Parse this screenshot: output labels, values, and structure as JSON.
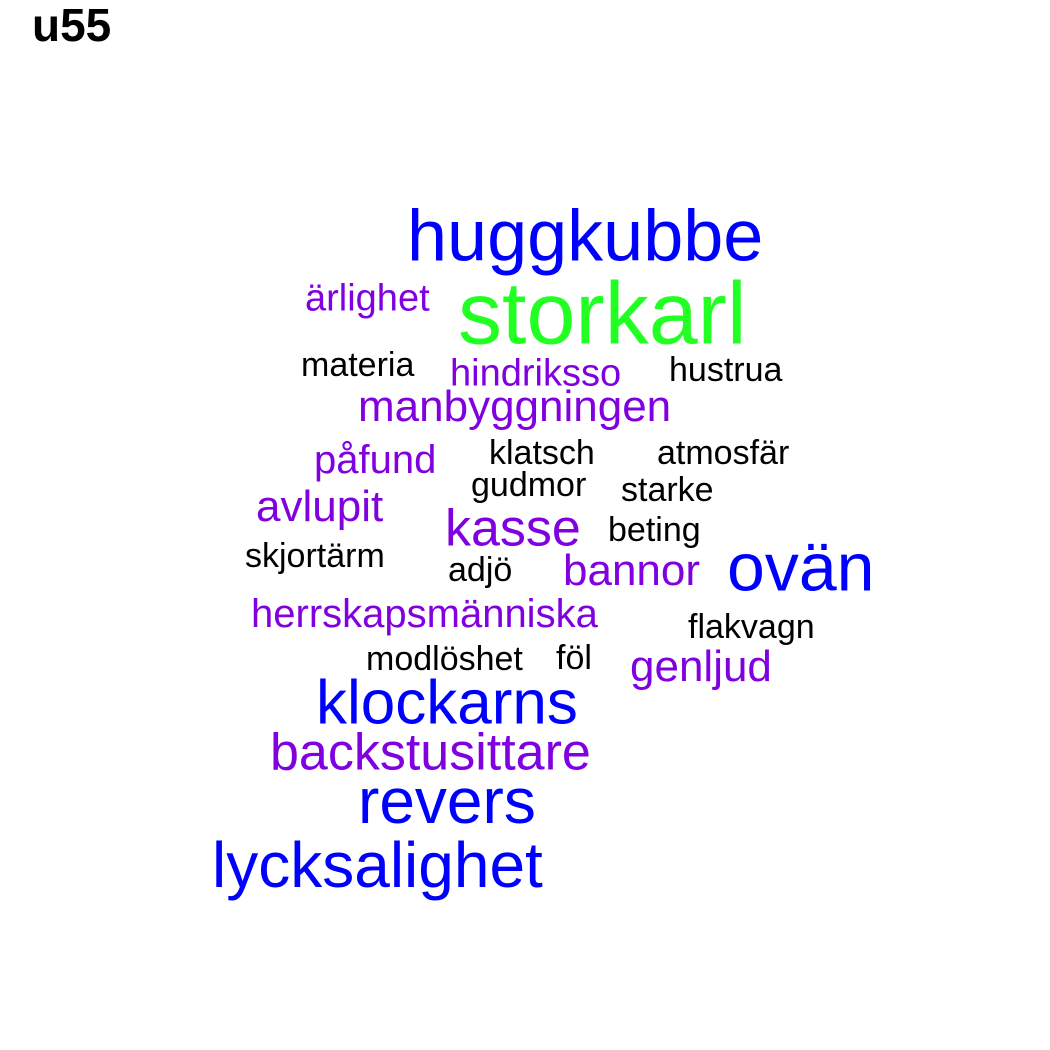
{
  "title": "u55",
  "colors": {
    "top": "#22ff22",
    "high": "#0000ff",
    "mid": "#8000e0",
    "low": "#000000"
  },
  "words": [
    {
      "text": "huggkubbe",
      "tier": "high"
    },
    {
      "text": "ärlighet",
      "tier": "mid"
    },
    {
      "text": "storkarl",
      "tier": "top"
    },
    {
      "text": "materia",
      "tier": "low"
    },
    {
      "text": "hindriksso",
      "tier": "mid"
    },
    {
      "text": "hustrua",
      "tier": "low"
    },
    {
      "text": "manbyggningen",
      "tier": "mid"
    },
    {
      "text": "påfund",
      "tier": "mid"
    },
    {
      "text": "klatsch",
      "tier": "low"
    },
    {
      "text": "atmosfär",
      "tier": "low"
    },
    {
      "text": "gudmor",
      "tier": "low"
    },
    {
      "text": "starke",
      "tier": "low"
    },
    {
      "text": "avlupit",
      "tier": "mid"
    },
    {
      "text": "kasse",
      "tier": "mid"
    },
    {
      "text": "beting",
      "tier": "low"
    },
    {
      "text": "skjortärm",
      "tier": "low"
    },
    {
      "text": "adjö",
      "tier": "low"
    },
    {
      "text": "bannor",
      "tier": "mid"
    },
    {
      "text": "ovän",
      "tier": "high"
    },
    {
      "text": "herrskapsmänniska",
      "tier": "mid"
    },
    {
      "text": "flakvagn",
      "tier": "low"
    },
    {
      "text": "modlöshet",
      "tier": "low"
    },
    {
      "text": "föl",
      "tier": "low"
    },
    {
      "text": "genljud",
      "tier": "mid"
    },
    {
      "text": "klockarns",
      "tier": "high"
    },
    {
      "text": "backstusittare",
      "tier": "mid"
    },
    {
      "text": "revers",
      "tier": "high"
    },
    {
      "text": "lycksalighet",
      "tier": "high"
    }
  ]
}
